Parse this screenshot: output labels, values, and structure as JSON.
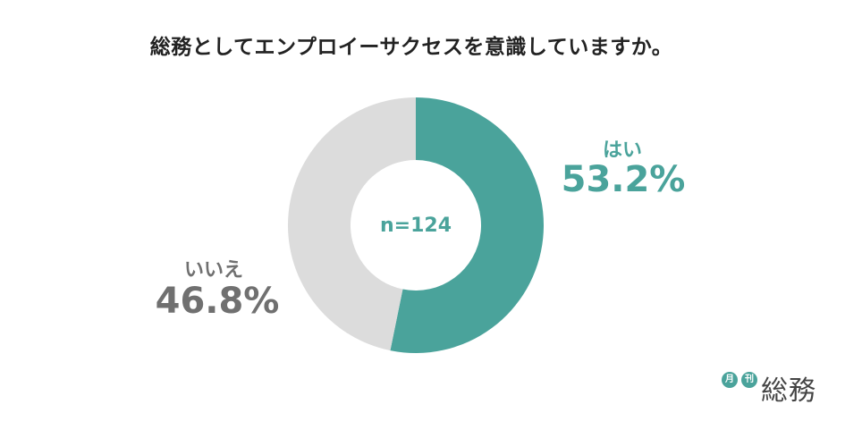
{
  "title": "総務としてエンプロイーサクセスを意識していますか。",
  "chart_data": {
    "type": "pie",
    "variant": "donut",
    "title": "総務としてエンプロイーサクセスを意識していますか。",
    "center_label": "n=124",
    "slices": [
      {
        "label": "はい",
        "value": 53.2,
        "value_label": "53.2%",
        "color": "#4aa39b"
      },
      {
        "label": "いいえ",
        "value": 46.8,
        "value_label": "46.8%",
        "color": "#dcdcdc"
      }
    ]
  },
  "logo": {
    "badge_1": "月",
    "badge_2": "刊",
    "text": "総務"
  }
}
